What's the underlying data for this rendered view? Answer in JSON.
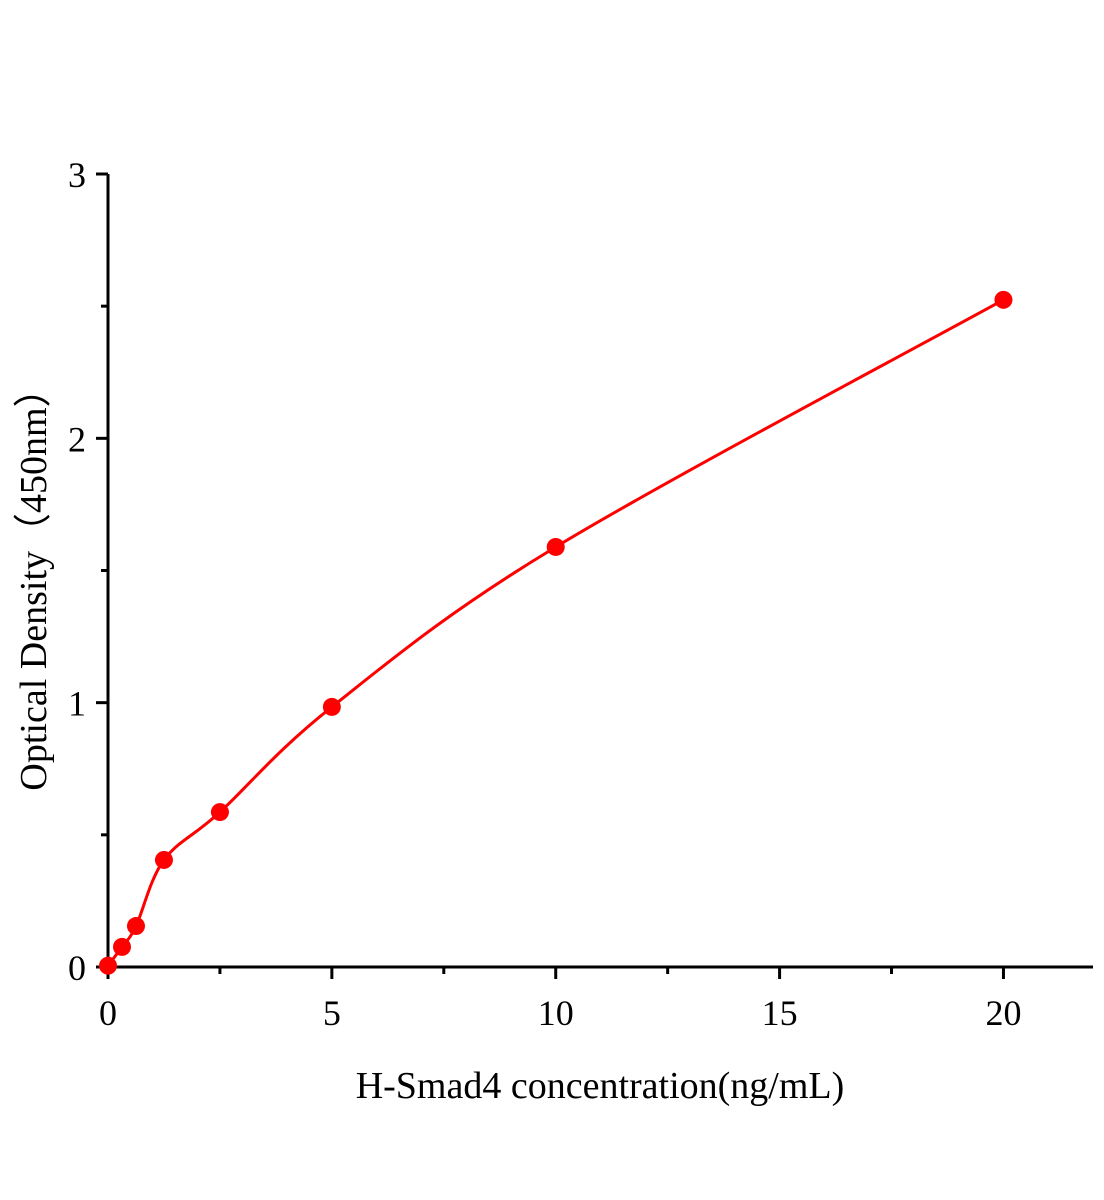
{
  "chart_data": {
    "type": "scatter",
    "title": "",
    "xlabel": "H-Smad4 concentration(ng/mL)",
    "ylabel": "Optical Density（450nm）",
    "xlim": [
      0,
      22
    ],
    "ylim": [
      0,
      3
    ],
    "x_ticks": [
      0,
      5,
      10,
      15,
      20
    ],
    "y_ticks": [
      0,
      1,
      2,
      3
    ],
    "x_tick_labels": [
      "0",
      "5",
      "10",
      "15",
      "20"
    ],
    "y_tick_labels": [
      "0",
      "1",
      "2",
      "3"
    ],
    "grid": false,
    "series": [
      {
        "x": [
          0,
          0.3125,
          0.625,
          1.25,
          2.5,
          5,
          10,
          20
        ],
        "y": [
          0.005,
          0.076,
          0.155,
          0.405,
          0.586,
          0.984,
          1.589,
          2.524
        ],
        "color": "#ff0000",
        "fit_curve": true
      }
    ]
  }
}
